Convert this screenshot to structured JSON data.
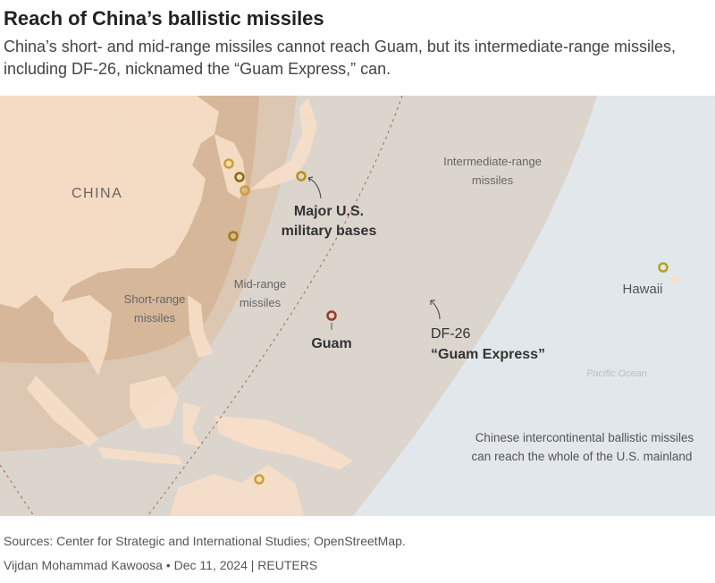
{
  "header": {
    "title": "Reach of China’s ballistic missiles",
    "subtitle": "China’s short- and mid-range missiles cannot reach Guam, but its intermediate-range missiles, including DF-26, nicknamed the “Guam Express,” can."
  },
  "map": {
    "labels": {
      "china": "CHINA",
      "bases_line1": "Major U.S.",
      "bases_line2": "military bases",
      "intermediate_line1": "Intermediate-range",
      "intermediate_line2": "missiles",
      "mid_line1": "Mid-range",
      "mid_line2": "missiles",
      "short_line1": "Short-range",
      "short_line2": "missiles",
      "guam": "Guam",
      "df26_line1": "DF-26",
      "df26_line2": "“Guam Express”",
      "hawaii": "Hawaii",
      "ocean": "Pacific Ocean",
      "icbm_line1": "Chinese intercontinental ballistic missiles",
      "icbm_line2": "can reach the whole of the U.S. mainland"
    },
    "colors": {
      "ocean": "#e1e7eb",
      "intermediate_range": "#dcd5ce",
      "mid_range": "#dcc7b2",
      "short_range": "#d6b79a",
      "land": "#f8dfc9",
      "base_marker": "#b8901a",
      "guam_marker": "#9a3b20"
    }
  },
  "footer": {
    "sources": "Sources: Center for Strategic and International Studies; OpenStreetMap.",
    "credit": "Vijdan Mohammad Kawoosa • Dec 11, 2024 | REUTERS"
  }
}
